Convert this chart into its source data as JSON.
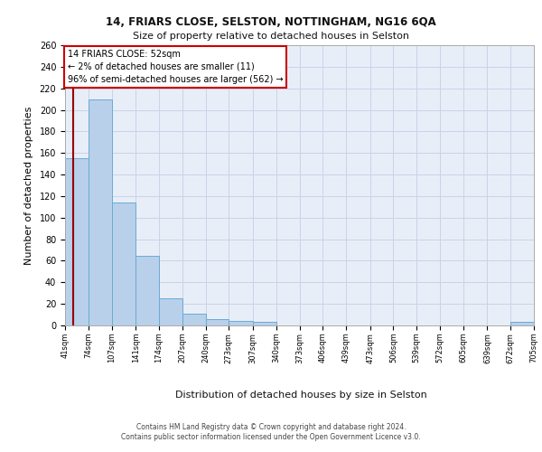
{
  "title1": "14, FRIARS CLOSE, SELSTON, NOTTINGHAM, NG16 6QA",
  "title2": "Size of property relative to detached houses in Selston",
  "xlabel": "Distribution of detached houses by size in Selston",
  "ylabel": "Number of detached properties",
  "bar_edges": [
    41,
    74,
    107,
    141,
    174,
    207,
    240,
    273,
    307,
    340,
    373,
    406,
    439,
    473,
    506,
    539,
    572,
    605,
    639,
    672,
    705
  ],
  "bar_heights": [
    155,
    210,
    114,
    65,
    25,
    11,
    6,
    4,
    3,
    0,
    0,
    0,
    0,
    0,
    0,
    0,
    0,
    0,
    0,
    3
  ],
  "bar_color": "#b8d0ea",
  "bar_edge_color": "#6aaad4",
  "annotation_line1": "14 FRIARS CLOSE: 52sqm",
  "annotation_line2": "← 2% of detached houses are smaller (11)",
  "annotation_line3": "96% of semi-detached houses are larger (562) →",
  "red_line_x": 52,
  "ylim": [
    0,
    260
  ],
  "yticks": [
    0,
    20,
    40,
    60,
    80,
    100,
    120,
    140,
    160,
    180,
    200,
    220,
    240,
    260
  ],
  "grid_color": "#c8d4e8",
  "bg_color": "#e8eef8",
  "footer1": "Contains HM Land Registry data © Crown copyright and database right 2024.",
  "footer2": "Contains public sector information licensed under the Open Government Licence v3.0."
}
